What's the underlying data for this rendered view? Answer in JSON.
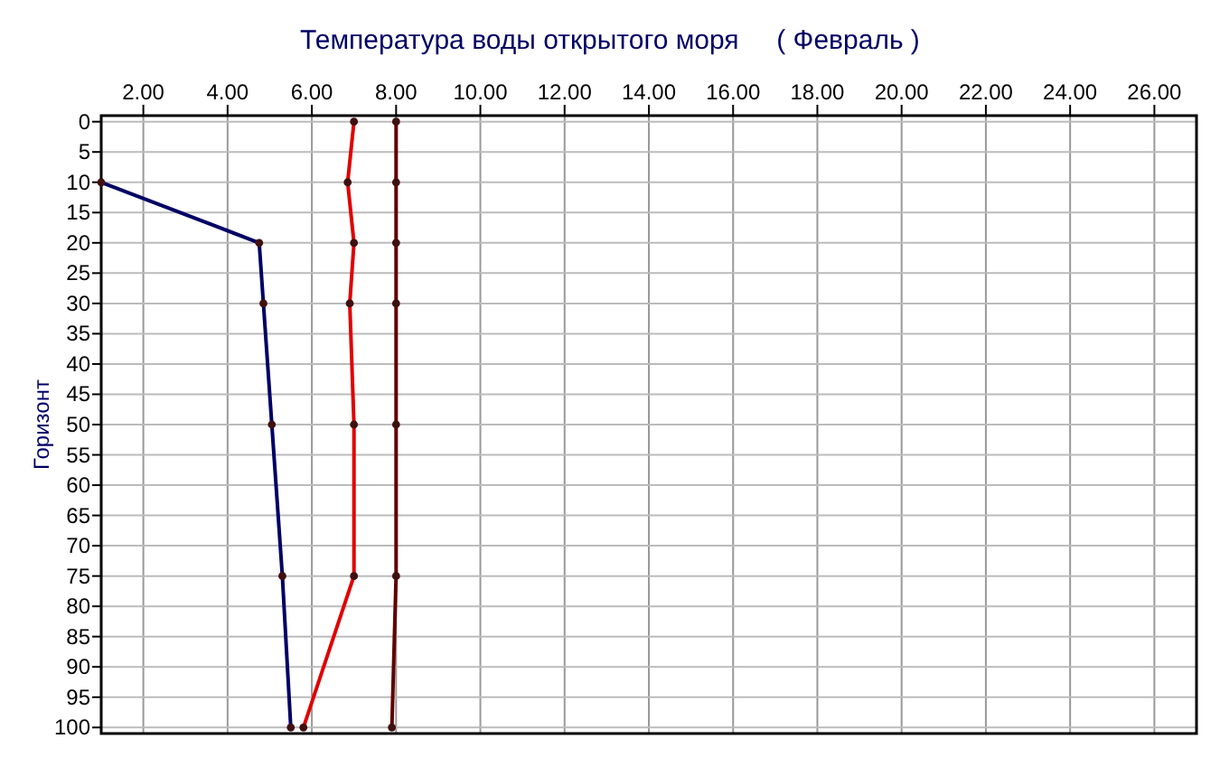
{
  "chart_data": {
    "type": "line",
    "title": "Температура воды открытого моря     ( Февраль )",
    "ylabel": "Горизонт",
    "series": [
      {
        "color": "#000066",
        "x": [
          1.0,
          4.75,
          4.85,
          5.05,
          5.3,
          5.5
        ],
        "values": [
          10,
          20,
          30,
          50,
          75,
          100
        ]
      },
      {
        "color": "#e00000",
        "x": [
          7.0,
          6.85,
          7.0,
          6.9,
          7.0,
          7.0,
          5.8
        ],
        "values": [
          0,
          10,
          20,
          30,
          50,
          75,
          100
        ]
      },
      {
        "color": "#600000",
        "x": [
          8.0,
          8.0,
          8.0,
          8.0,
          8.0,
          8.0,
          7.9
        ],
        "values": [
          0,
          10,
          20,
          30,
          50,
          75,
          100
        ]
      }
    ],
    "xlim": [
      1,
      27
    ],
    "xticks": [
      {
        "value": 2,
        "label": "2.00"
      },
      {
        "value": 4,
        "label": "4.00"
      },
      {
        "value": 6,
        "label": "6.00"
      },
      {
        "value": 8,
        "label": "8.00"
      },
      {
        "value": 10,
        "label": "10.00"
      },
      {
        "value": 12,
        "label": "12.00"
      },
      {
        "value": 14,
        "label": "14.00"
      },
      {
        "value": 16,
        "label": "16.00"
      },
      {
        "value": 18,
        "label": "18.00"
      },
      {
        "value": 20,
        "label": "20.00"
      },
      {
        "value": 22,
        "label": "22.00"
      },
      {
        "value": 24,
        "label": "24.00"
      },
      {
        "value": 26,
        "label": "26.00"
      }
    ],
    "ylim": [
      101,
      -1
    ],
    "yticks": [
      0,
      5,
      10,
      15,
      20,
      25,
      30,
      35,
      40,
      45,
      50,
      55,
      60,
      65,
      70,
      75,
      80,
      85,
      90,
      95,
      100
    ],
    "grid": true,
    "marker": "circle",
    "line_style": "solid"
  }
}
